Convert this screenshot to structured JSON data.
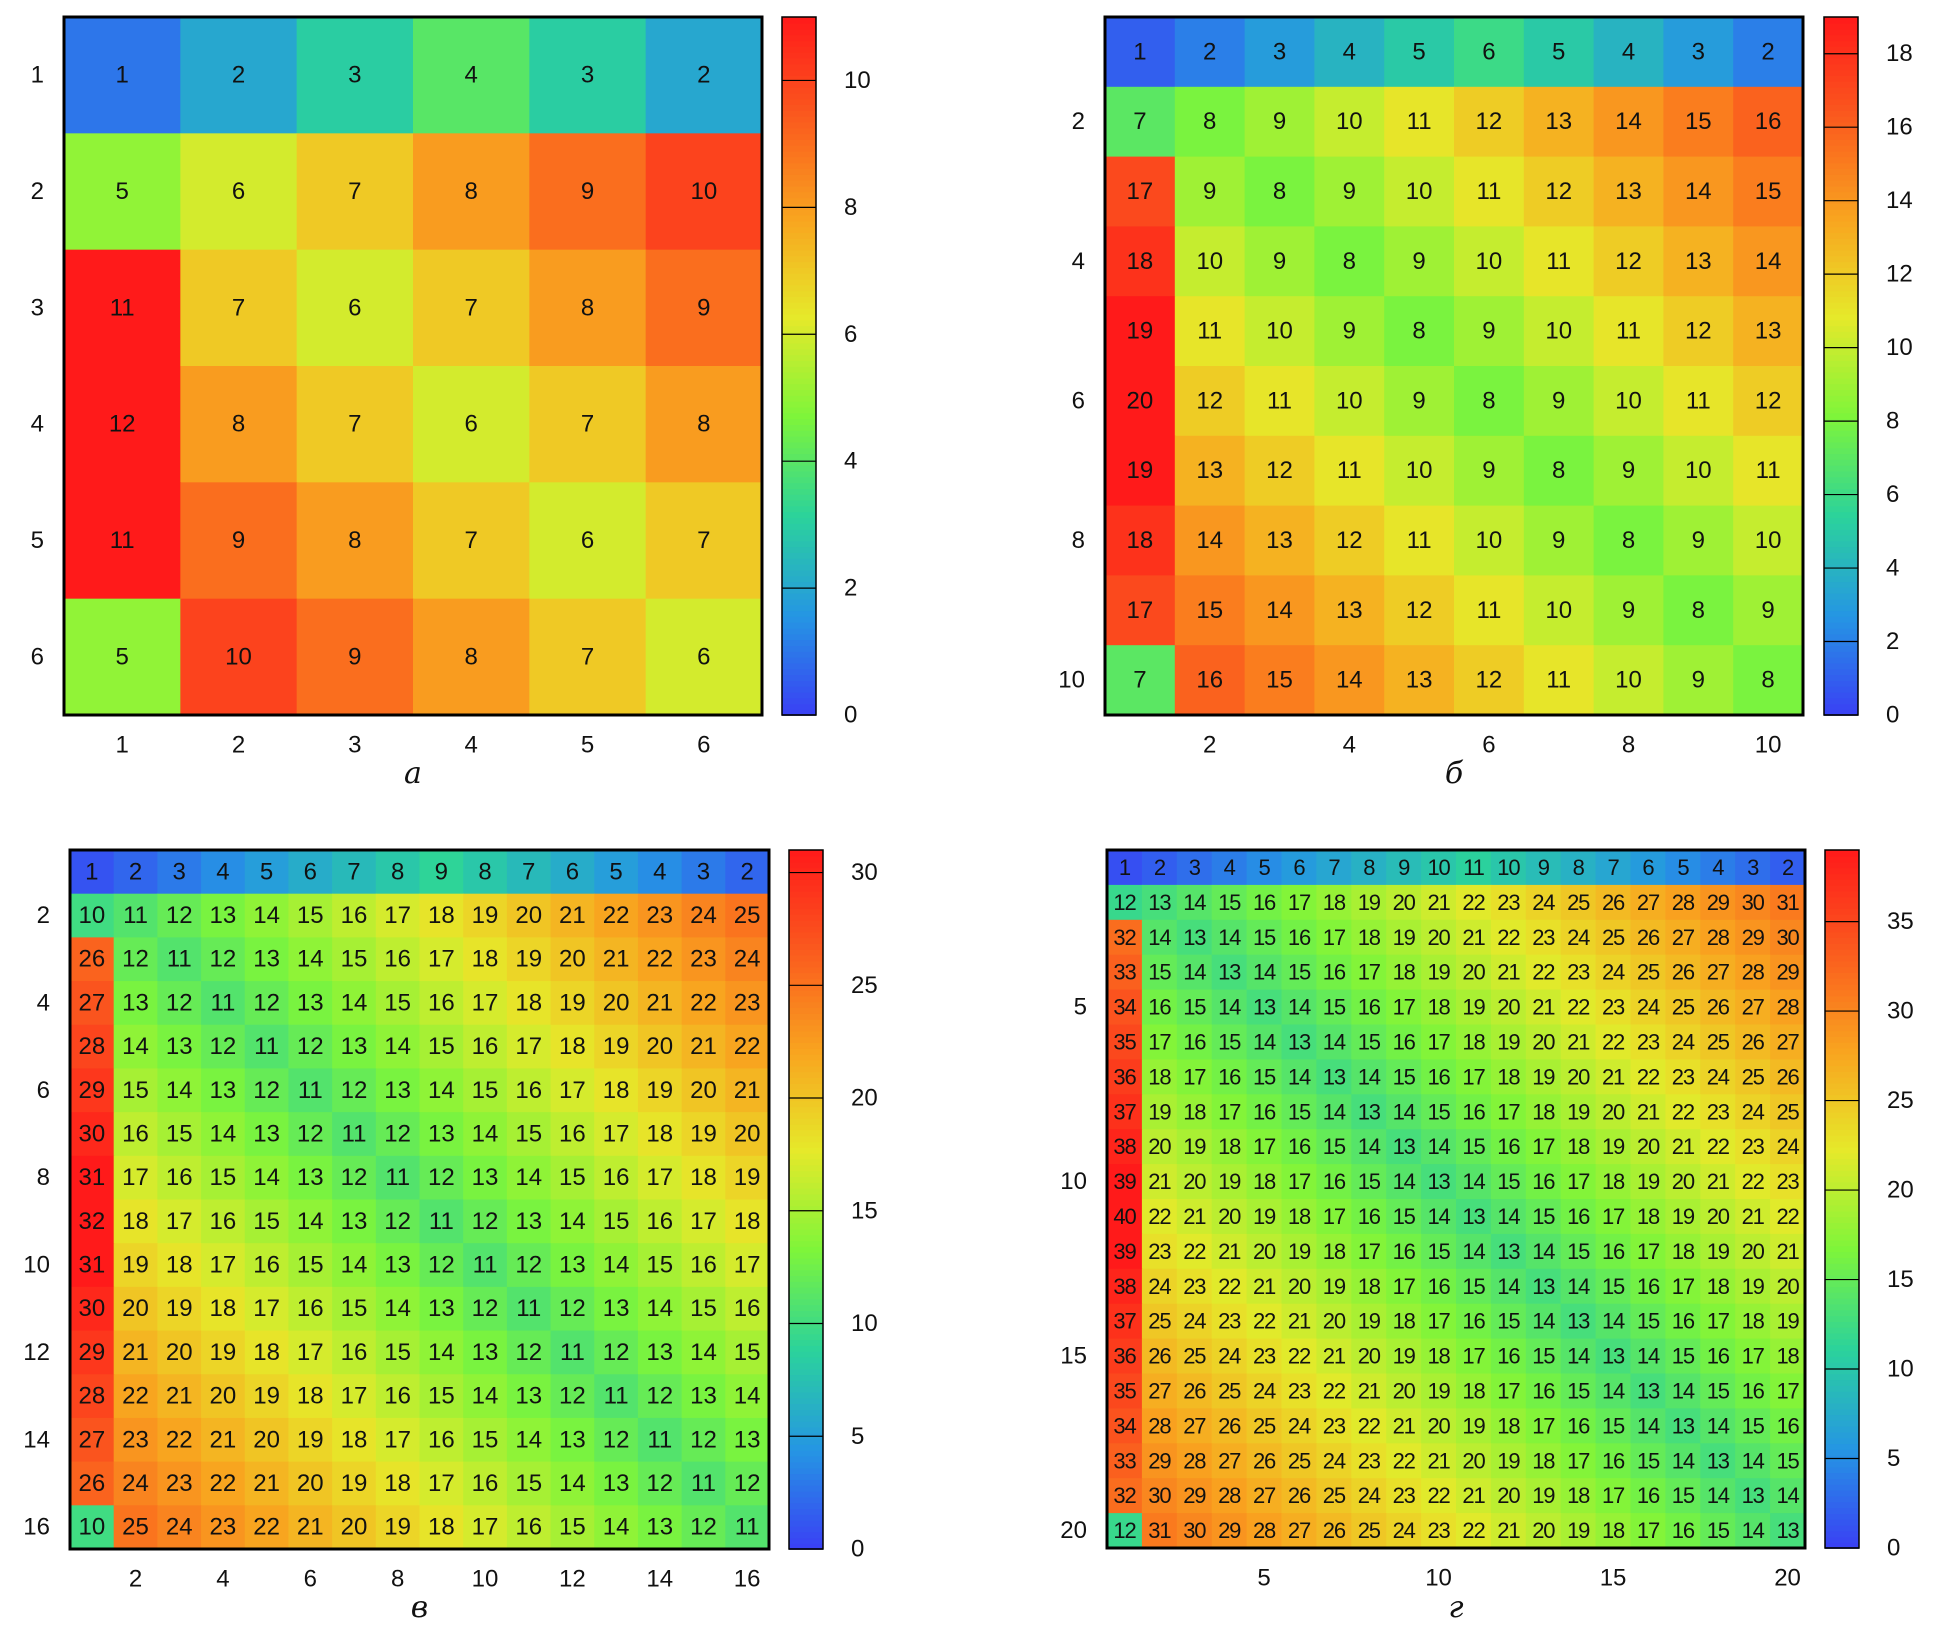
{
  "panels": [
    {
      "caption": "а",
      "chart_data": {
        "type": "heatmap",
        "n": 6,
        "matrix": [
          [
            1,
            2,
            3,
            4,
            3,
            2
          ],
          [
            5,
            6,
            7,
            8,
            9,
            10
          ],
          [
            11,
            7,
            6,
            7,
            8,
            9
          ],
          [
            12,
            8,
            7,
            6,
            7,
            8
          ],
          [
            11,
            9,
            8,
            7,
            6,
            7
          ],
          [
            5,
            10,
            9,
            8,
            7,
            6
          ]
        ],
        "x_ticks": [
          1,
          2,
          3,
          4,
          5,
          6
        ],
        "y_ticks": [
          1,
          2,
          3,
          4,
          5,
          6
        ],
        "colorbar": {
          "min": 0,
          "max": 11,
          "ticks": [
            0,
            2,
            4,
            6,
            8,
            10
          ]
        },
        "colormap": [
          "#3a3ff5",
          "#2596e3",
          "#2bd39b",
          "#7ef53a",
          "#e6e92a",
          "#f9a31f",
          "#fa5a1e",
          "#ff1a1a"
        ]
      }
    },
    {
      "caption": "б",
      "chart_data": {
        "type": "heatmap",
        "n": 10,
        "matrix": [
          [
            1,
            2,
            3,
            4,
            5,
            6,
            5,
            4,
            3,
            2
          ],
          [
            7,
            8,
            9,
            10,
            11,
            12,
            13,
            14,
            15,
            16
          ],
          [
            17,
            9,
            8,
            9,
            10,
            11,
            12,
            13,
            14,
            15
          ],
          [
            18,
            10,
            9,
            8,
            9,
            10,
            11,
            12,
            13,
            14
          ],
          [
            19,
            11,
            10,
            9,
            8,
            9,
            10,
            11,
            12,
            13
          ],
          [
            20,
            12,
            11,
            10,
            9,
            8,
            9,
            10,
            11,
            12
          ],
          [
            19,
            13,
            12,
            11,
            10,
            9,
            8,
            9,
            10,
            11
          ],
          [
            18,
            14,
            13,
            12,
            11,
            10,
            9,
            8,
            9,
            10
          ],
          [
            17,
            15,
            14,
            13,
            12,
            11,
            10,
            9,
            8,
            9
          ],
          [
            7,
            16,
            15,
            14,
            13,
            12,
            11,
            10,
            9,
            8
          ]
        ],
        "x_ticks": [
          2,
          4,
          6,
          8,
          10
        ],
        "y_ticks": [
          2,
          4,
          6,
          8,
          10
        ],
        "colorbar": {
          "min": 0,
          "max": 19,
          "ticks": [
            0,
            2,
            4,
            6,
            8,
            10,
            12,
            14,
            16,
            18
          ]
        },
        "colormap": [
          "#3a3ff5",
          "#2596e3",
          "#2bd39b",
          "#7ef53a",
          "#e6e92a",
          "#f9a31f",
          "#fa5a1e",
          "#ff1a1a"
        ]
      }
    },
    {
      "caption": "в",
      "chart_data": {
        "type": "heatmap",
        "n": 16,
        "matrix": [
          [
            1,
            2,
            3,
            4,
            5,
            6,
            7,
            8,
            9,
            8,
            7,
            6,
            5,
            4,
            3,
            2
          ],
          [
            10,
            11,
            12,
            13,
            14,
            15,
            16,
            17,
            18,
            19,
            20,
            21,
            22,
            23,
            24,
            25
          ],
          [
            26,
            12,
            11,
            12,
            13,
            14,
            15,
            16,
            17,
            18,
            19,
            20,
            21,
            22,
            23,
            24
          ],
          [
            27,
            13,
            12,
            11,
            12,
            13,
            14,
            15,
            16,
            17,
            18,
            19,
            20,
            21,
            22,
            23
          ],
          [
            28,
            14,
            13,
            12,
            11,
            12,
            13,
            14,
            15,
            16,
            17,
            18,
            19,
            20,
            21,
            22
          ],
          [
            29,
            15,
            14,
            13,
            12,
            11,
            12,
            13,
            14,
            15,
            16,
            17,
            18,
            19,
            20,
            21
          ],
          [
            30,
            16,
            15,
            14,
            13,
            12,
            11,
            12,
            13,
            14,
            15,
            16,
            17,
            18,
            19,
            20
          ],
          [
            31,
            17,
            16,
            15,
            14,
            13,
            12,
            11,
            12,
            13,
            14,
            15,
            16,
            17,
            18,
            19
          ],
          [
            32,
            18,
            17,
            16,
            15,
            14,
            13,
            12,
            11,
            12,
            13,
            14,
            15,
            16,
            17,
            18
          ],
          [
            31,
            19,
            18,
            17,
            16,
            15,
            14,
            13,
            12,
            11,
            12,
            13,
            14,
            15,
            16,
            17
          ],
          [
            30,
            20,
            19,
            18,
            17,
            16,
            15,
            14,
            13,
            12,
            11,
            12,
            13,
            14,
            15,
            16
          ],
          [
            29,
            21,
            20,
            19,
            18,
            17,
            16,
            15,
            14,
            13,
            12,
            11,
            12,
            13,
            14,
            15
          ],
          [
            28,
            22,
            21,
            20,
            19,
            18,
            17,
            16,
            15,
            14,
            13,
            12,
            11,
            12,
            13,
            14
          ],
          [
            27,
            23,
            22,
            21,
            20,
            19,
            18,
            17,
            16,
            15,
            14,
            13,
            12,
            11,
            12,
            13
          ],
          [
            26,
            24,
            23,
            22,
            21,
            20,
            19,
            18,
            17,
            16,
            15,
            14,
            13,
            12,
            11,
            12
          ],
          [
            10,
            25,
            24,
            23,
            22,
            21,
            20,
            19,
            18,
            17,
            16,
            15,
            14,
            13,
            12,
            11
          ]
        ],
        "x_ticks": [
          2,
          4,
          6,
          8,
          10,
          12,
          14,
          16
        ],
        "y_ticks": [
          2,
          4,
          6,
          8,
          10,
          12,
          14,
          16
        ],
        "colorbar": {
          "min": 0,
          "max": 31,
          "ticks": [
            0,
            5,
            10,
            15,
            20,
            25,
            30
          ]
        },
        "colormap": [
          "#3a3ff5",
          "#2596e3",
          "#2bd39b",
          "#7ef53a",
          "#e6e92a",
          "#f9a31f",
          "#fa5a1e",
          "#ff1a1a"
        ]
      }
    },
    {
      "caption": "г",
      "chart_data": {
        "type": "heatmap",
        "n": 20,
        "matrix": [
          [
            1,
            2,
            3,
            4,
            5,
            6,
            7,
            8,
            9,
            10,
            11,
            10,
            9,
            8,
            7,
            6,
            5,
            4,
            3,
            2
          ],
          [
            12,
            13,
            14,
            15,
            16,
            17,
            18,
            19,
            20,
            21,
            22,
            23,
            24,
            25,
            26,
            27,
            28,
            29,
            30,
            31
          ],
          [
            32,
            14,
            13,
            14,
            15,
            16,
            17,
            18,
            19,
            20,
            21,
            22,
            23,
            24,
            25,
            26,
            27,
            28,
            29,
            30
          ],
          [
            33,
            15,
            14,
            13,
            14,
            15,
            16,
            17,
            18,
            19,
            20,
            21,
            22,
            23,
            24,
            25,
            26,
            27,
            28,
            29
          ],
          [
            34,
            16,
            15,
            14,
            13,
            14,
            15,
            16,
            17,
            18,
            19,
            20,
            21,
            22,
            23,
            24,
            25,
            26,
            27,
            28
          ],
          [
            35,
            17,
            16,
            15,
            14,
            13,
            14,
            15,
            16,
            17,
            18,
            19,
            20,
            21,
            22,
            23,
            24,
            25,
            26,
            27
          ],
          [
            36,
            18,
            17,
            16,
            15,
            14,
            13,
            14,
            15,
            16,
            17,
            18,
            19,
            20,
            21,
            22,
            23,
            24,
            25,
            26
          ],
          [
            37,
            19,
            18,
            17,
            16,
            15,
            14,
            13,
            14,
            15,
            16,
            17,
            18,
            19,
            20,
            21,
            22,
            23,
            24,
            25
          ],
          [
            38,
            20,
            19,
            18,
            17,
            16,
            15,
            14,
            13,
            14,
            15,
            16,
            17,
            18,
            19,
            20,
            21,
            22,
            23,
            24
          ],
          [
            39,
            21,
            20,
            19,
            18,
            17,
            16,
            15,
            14,
            13,
            14,
            15,
            16,
            17,
            18,
            19,
            20,
            21,
            22,
            23
          ],
          [
            40,
            22,
            21,
            20,
            19,
            18,
            17,
            16,
            15,
            14,
            13,
            14,
            15,
            16,
            17,
            18,
            19,
            20,
            21,
            22
          ],
          [
            39,
            23,
            22,
            21,
            20,
            19,
            18,
            17,
            16,
            15,
            14,
            13,
            14,
            15,
            16,
            17,
            18,
            19,
            20,
            21
          ],
          [
            38,
            24,
            23,
            22,
            21,
            20,
            19,
            18,
            17,
            16,
            15,
            14,
            13,
            14,
            15,
            16,
            17,
            18,
            19,
            20
          ],
          [
            37,
            25,
            24,
            23,
            22,
            21,
            20,
            19,
            18,
            17,
            16,
            15,
            14,
            13,
            14,
            15,
            16,
            17,
            18,
            19
          ],
          [
            36,
            26,
            25,
            24,
            23,
            22,
            21,
            20,
            19,
            18,
            17,
            16,
            15,
            14,
            13,
            14,
            15,
            16,
            17,
            18
          ],
          [
            35,
            27,
            26,
            25,
            24,
            23,
            22,
            21,
            20,
            19,
            18,
            17,
            16,
            15,
            14,
            13,
            14,
            15,
            16,
            17
          ],
          [
            34,
            28,
            27,
            26,
            25,
            24,
            23,
            22,
            21,
            20,
            19,
            18,
            17,
            16,
            15,
            14,
            13,
            14,
            15,
            16
          ],
          [
            33,
            29,
            28,
            27,
            26,
            25,
            24,
            23,
            22,
            21,
            20,
            19,
            18,
            17,
            16,
            15,
            14,
            13,
            14,
            15
          ],
          [
            32,
            30,
            29,
            28,
            27,
            26,
            25,
            24,
            23,
            22,
            21,
            20,
            19,
            18,
            17,
            16,
            15,
            14,
            13,
            14
          ],
          [
            12,
            31,
            30,
            29,
            28,
            27,
            26,
            25,
            24,
            23,
            22,
            21,
            20,
            19,
            18,
            17,
            16,
            15,
            14,
            13
          ]
        ],
        "x_ticks": [
          5,
          10,
          15,
          20
        ],
        "y_ticks": [
          5,
          10,
          15,
          20
        ],
        "colorbar": {
          "min": 0,
          "max": 39,
          "ticks": [
            0,
            5,
            10,
            15,
            20,
            25,
            30,
            35
          ]
        },
        "colormap": [
          "#3a3ff5",
          "#2596e3",
          "#2bd39b",
          "#7ef53a",
          "#e6e92a",
          "#f9a31f",
          "#fa5a1e",
          "#ff1a1a"
        ]
      }
    }
  ]
}
